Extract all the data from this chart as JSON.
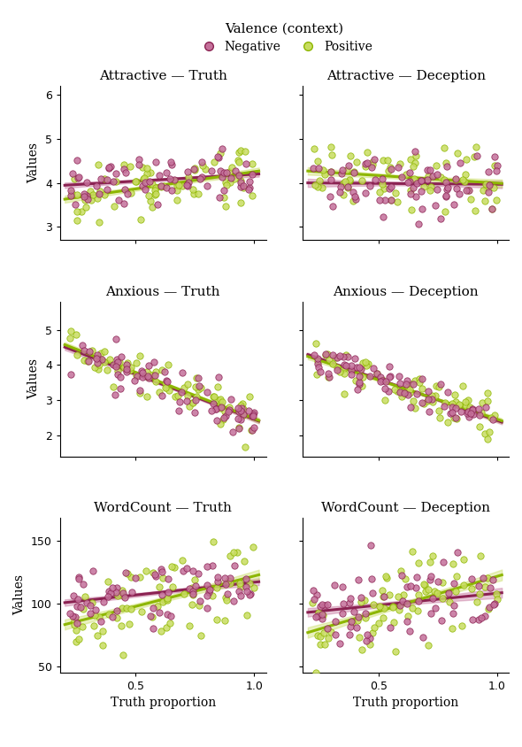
{
  "neg_color": "#8B2252",
  "pos_color": "#8DB600",
  "neg_fill": "#C4709A",
  "pos_fill": "#C8DC60",
  "bg_color": "#FFFFFF",
  "subplot_titles": [
    [
      "Attractive — Truth",
      "Attractive — Deception"
    ],
    [
      "Anxious — Truth",
      "Anxious — Deception"
    ],
    [
      "WordCount — Truth",
      "WordCount — Deception"
    ]
  ],
  "ylabel": "Values",
  "xlabel": "Truth proportion",
  "legend_title": "Valence (context)",
  "legend_labels": [
    "Negative",
    "Positive"
  ],
  "attr_ylim": [
    2.7,
    6.2
  ],
  "attr_yticks": [
    3,
    4,
    5,
    6
  ],
  "anx_ylim": [
    1.4,
    5.8
  ],
  "anx_yticks": [
    2,
    3,
    4,
    5
  ],
  "wc_ylim": [
    45,
    168
  ],
  "wc_yticks": [
    50,
    100,
    150
  ],
  "xlim": [
    0.18,
    1.05
  ],
  "xticks": [
    0.5,
    1.0
  ],
  "xticklabels": [
    "0.5",
    "1.0"
  ]
}
